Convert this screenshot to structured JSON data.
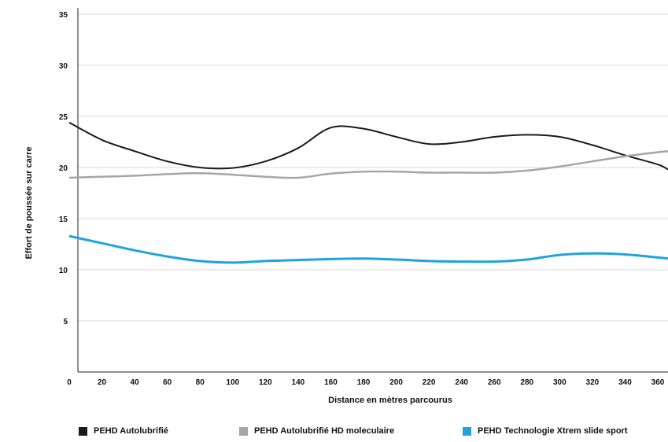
{
  "chart_data": {
    "type": "line",
    "title": "",
    "xlabel": "Distance en mètres parcourus",
    "ylabel": "Effort de poussée sur carre",
    "xlim": [
      0,
      370
    ],
    "ylim": [
      0,
      35
    ],
    "x_ticks": [
      "0",
      "20",
      "40",
      "60",
      "80",
      "100",
      "120",
      "140",
      "160",
      "180",
      "200",
      "220",
      "240",
      "260",
      "280",
      "300",
      "320",
      "340",
      "360"
    ],
    "y_ticks": [
      "5",
      "10",
      "15",
      "20",
      "25",
      "30",
      "35"
    ],
    "grid": "horizontal",
    "legend_position": "bottom",
    "series": [
      {
        "name": "PEHD Autolubrifié",
        "color": "#1a1a1a",
        "x": [
          0,
          20,
          40,
          60,
          80,
          100,
          120,
          140,
          160,
          180,
          200,
          220,
          240,
          260,
          280,
          300,
          320,
          340,
          360,
          370
        ],
        "y": [
          24.4,
          22.7,
          21.6,
          20.6,
          20.0,
          19.95,
          20.6,
          21.9,
          23.9,
          23.8,
          23.0,
          22.3,
          22.5,
          23.0,
          23.2,
          23.0,
          22.2,
          21.2,
          20.3,
          19.8
        ]
      },
      {
        "name": "PEHD Autolubrifié HD moleculaire",
        "color": "#a6a6a6",
        "x": [
          0,
          20,
          40,
          60,
          80,
          100,
          120,
          140,
          160,
          180,
          200,
          220,
          240,
          260,
          280,
          300,
          320,
          340,
          360,
          370
        ],
        "y": [
          19.0,
          19.1,
          19.2,
          19.35,
          19.45,
          19.3,
          19.1,
          19.0,
          19.4,
          19.6,
          19.6,
          19.5,
          19.5,
          19.5,
          19.7,
          20.1,
          20.6,
          21.1,
          21.5,
          21.6
        ]
      },
      {
        "name": "PEHD Technologie Xtrem slide sport",
        "color": "#1ea3e0",
        "x": [
          0,
          20,
          40,
          60,
          80,
          100,
          120,
          140,
          160,
          180,
          200,
          220,
          240,
          260,
          280,
          300,
          320,
          340,
          360,
          370
        ],
        "y": [
          13.3,
          12.6,
          11.9,
          11.3,
          10.85,
          10.7,
          10.85,
          10.95,
          11.05,
          11.1,
          11.0,
          10.85,
          10.8,
          10.8,
          11.0,
          11.45,
          11.6,
          11.5,
          11.2,
          11.1
        ]
      }
    ]
  }
}
